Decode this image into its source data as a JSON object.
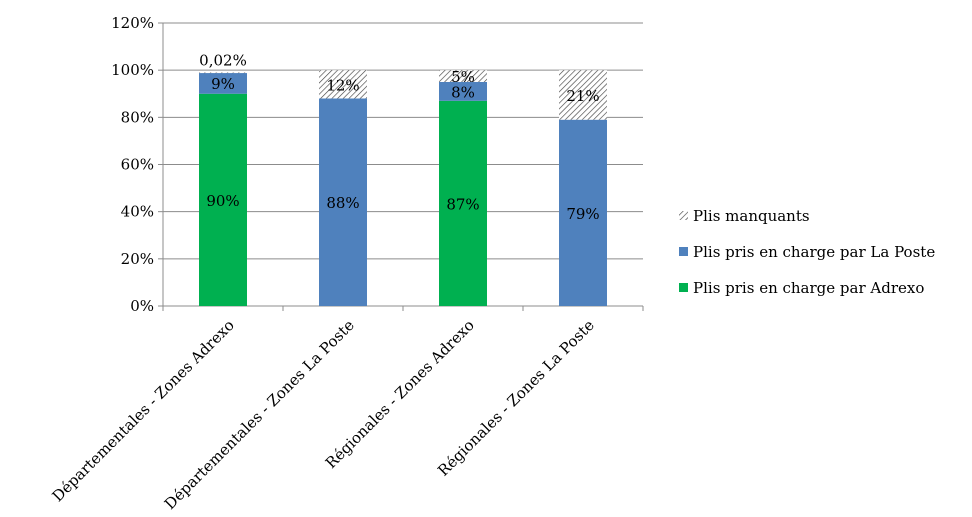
{
  "chart_data": {
    "type": "bar",
    "stacked": true,
    "categories": [
      "Départementales - Zones Adrexo",
      "Départementales - Zones La Poste",
      "Régionales - Zones Adrexo",
      "Régionales - Zones La Poste"
    ],
    "series": [
      {
        "name": "Plis pris en charge par Adrexo",
        "color": "#00b050",
        "values": [
          90,
          0,
          87,
          0
        ],
        "labels": [
          "90%",
          "",
          "87%",
          ""
        ]
      },
      {
        "name": "Plis pris en charge par La Poste",
        "color": "#4f81bd",
        "values": [
          9,
          88,
          8,
          79
        ],
        "labels": [
          "9%",
          "88%",
          "8%",
          "79%"
        ]
      },
      {
        "name": "Plis manquants",
        "pattern": "hatch",
        "values": [
          0.02,
          12,
          5,
          21
        ],
        "labels": [
          "0,02%",
          "12%",
          "5%",
          "21%"
        ]
      }
    ],
    "y_ticks": [
      "0%",
      "20%",
      "40%",
      "60%",
      "80%",
      "100%",
      "120%"
    ],
    "ylim": [
      0,
      120
    ],
    "y_unit": "%",
    "grid": true,
    "legend_position": "right",
    "legend_order": [
      "Plis manquants",
      "Plis pris en charge par La Poste",
      "Plis pris en charge par Adrexo"
    ]
  }
}
